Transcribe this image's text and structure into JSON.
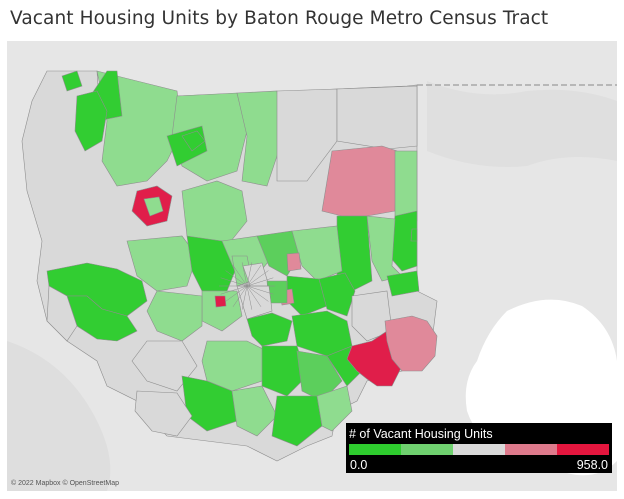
{
  "title": "Vacant Housing Units by Baton Rouge Metro Census Tract",
  "attribution": "© 2022 Mapbox © OpenStreetMap",
  "legend": {
    "title": "# of Vacant Housing Units",
    "min_label": "0.0",
    "max_label": "958.0",
    "min": 0.0,
    "max": 958.0,
    "colors": [
      "#2ecc2e",
      "#6fd06f",
      "#d9d9d9",
      "#de7a8c",
      "#e4163e"
    ]
  },
  "colors": {
    "background_map": "#e8e8e8",
    "water": "#ffffff",
    "dark_green": "#32cd32",
    "light_green": "#8fdc8f",
    "mid_green": "#5ccf5c",
    "gray": "#d9d9d9",
    "pink": "#e0899a",
    "red": "#e01e4a"
  }
}
